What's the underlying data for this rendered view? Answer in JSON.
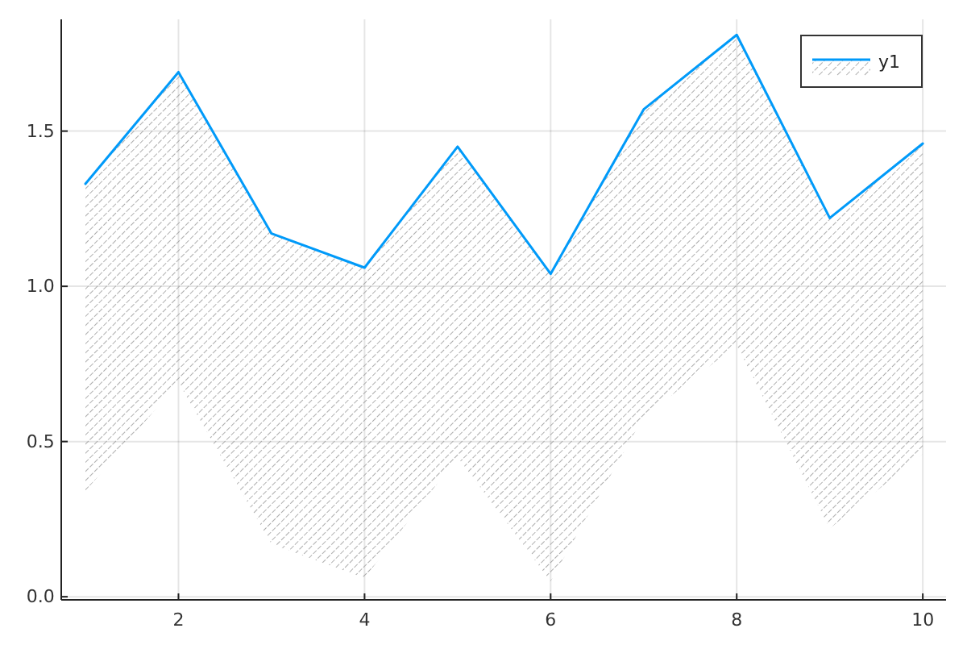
{
  "chart_data": {
    "type": "line",
    "x": [
      1,
      2,
      3,
      4,
      5,
      6,
      7,
      8,
      9,
      10
    ],
    "series": [
      {
        "name": "y1",
        "color": "#009af9",
        "values": [
          1.33,
          1.69,
          1.17,
          1.06,
          1.45,
          1.04,
          1.57,
          1.81,
          1.22,
          1.46
        ],
        "lower": [
          0.34,
          0.69,
          0.17,
          0.06,
          0.45,
          0.05,
          0.58,
          0.81,
          0.22,
          0.46
        ],
        "upper": [
          1.33,
          1.69,
          1.17,
          1.06,
          1.45,
          1.04,
          1.57,
          1.81,
          1.22,
          1.46
        ]
      }
    ],
    "xlim": [
      0.74,
      10.25
    ],
    "ylim": [
      -0.01,
      1.86
    ],
    "xticks": [
      2,
      4,
      6,
      8,
      10
    ],
    "yticks": [
      {
        "value": 0,
        "label": "0.0"
      },
      0.5,
      {
        "value": 1,
        "label": "1.0"
      },
      1.5
    ],
    "grid": true,
    "legend": "top right",
    "marker": "none",
    "line_style": "solid"
  }
}
